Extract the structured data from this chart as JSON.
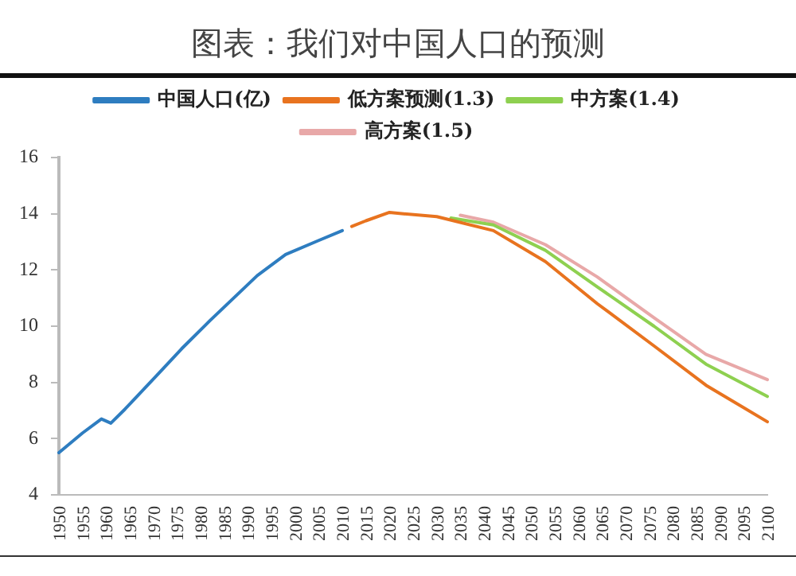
{
  "chart_data": {
    "type": "line",
    "title": "图表：我们对中国人口的预测",
    "xlim": [
      1950,
      2100
    ],
    "xticks": [
      1950,
      1955,
      1960,
      1965,
      1970,
      1975,
      1980,
      1985,
      1990,
      1995,
      2000,
      2005,
      2010,
      2015,
      2020,
      2025,
      2030,
      2035,
      2040,
      2045,
      2050,
      2055,
      2060,
      2065,
      2070,
      2075,
      2080,
      2085,
      2090,
      2095,
      2100
    ],
    "ylim": [
      4,
      16
    ],
    "yticks": [
      4,
      6,
      8,
      10,
      12,
      14,
      16
    ],
    "grid": false,
    "legend": "top",
    "marker": "none",
    "line_style": "solid",
    "series": [
      {
        "name": "中国人口(亿)",
        "color": "#2e7dc0",
        "x": [
          1950,
          1955,
          1959,
          1961,
          1964,
          1971,
          1976,
          1982,
          1992,
          1998,
          2005,
          2010
        ],
        "values": [
          5.5,
          6.2,
          6.7,
          6.55,
          7.05,
          8.3,
          9.2,
          10.2,
          11.8,
          12.55,
          13.05,
          13.4
        ]
      },
      {
        "name": "低方案预测(1.3)",
        "color": "#e8731f",
        "x": [
          2012,
          2015,
          2020,
          2023,
          2030,
          2042,
          2053,
          2064,
          2076,
          2087,
          2100
        ],
        "values": [
          13.55,
          13.75,
          14.05,
          14.0,
          13.9,
          13.4,
          12.3,
          10.8,
          9.3,
          7.9,
          6.6
        ]
      },
      {
        "name": "中方案(1.4)",
        "color": "#8ed050",
        "x": [
          2033,
          2042,
          2053,
          2064,
          2076,
          2087,
          2100
        ],
        "values": [
          13.85,
          13.6,
          12.7,
          11.4,
          10.0,
          8.65,
          7.5
        ]
      },
      {
        "name": "高方案(1.5)",
        "color": "#e8a8a8",
        "x": [
          2035,
          2042,
          2053,
          2064,
          2076,
          2087,
          2100
        ],
        "values": [
          13.95,
          13.7,
          12.9,
          11.75,
          10.3,
          9.0,
          8.1
        ]
      }
    ]
  }
}
